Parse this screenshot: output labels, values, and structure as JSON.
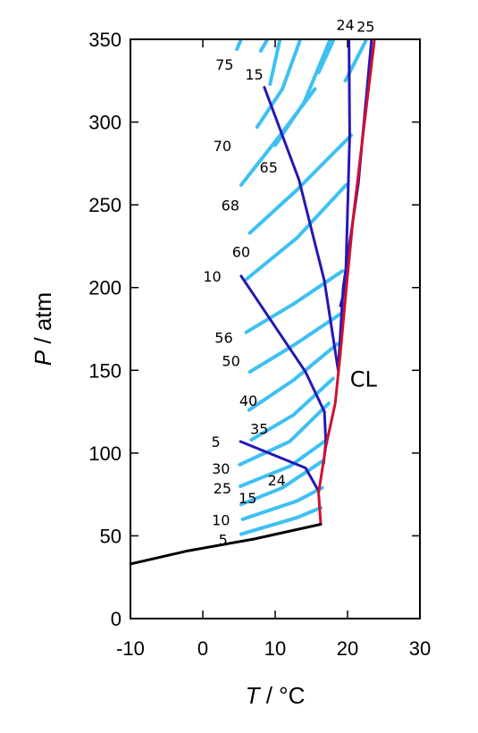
{
  "chart_data": {
    "type": "line",
    "title": "",
    "xlabel": {
      "italic": "T",
      "unit": " / °C"
    },
    "ylabel": {
      "italic": "P",
      "unit": " / atm"
    },
    "xlim": [
      -10,
      30
    ],
    "ylim": [
      0,
      350
    ],
    "xticks": [
      -10,
      0,
      10,
      20,
      30
    ],
    "yticks": [
      0,
      50,
      100,
      150,
      200,
      250,
      300,
      350
    ],
    "grid": false,
    "colors": {
      "isopleth": "#3ec0f2",
      "tie_line": "#2418b4",
      "critical_line": "#d01030",
      "three_phase": "#000000"
    },
    "annotations": [
      {
        "text": "24",
        "x": 19.7,
        "y": 358
      },
      {
        "text": "25",
        "x": 22.5,
        "y": 357
      },
      {
        "text": "75",
        "x": 3.0,
        "y": 334
      },
      {
        "text": "15",
        "x": 7.1,
        "y": 328
      },
      {
        "text": "70",
        "x": 2.7,
        "y": 285
      },
      {
        "text": "65",
        "x": 9.1,
        "y": 272
      },
      {
        "text": "68",
        "x": 3.8,
        "y": 249
      },
      {
        "text": "60",
        "x": 5.3,
        "y": 221
      },
      {
        "text": "10",
        "x": 1.3,
        "y": 206
      },
      {
        "text": "56",
        "x": 2.9,
        "y": 169
      },
      {
        "text": "50",
        "x": 3.9,
        "y": 155
      },
      {
        "text": "40",
        "x": 6.3,
        "y": 131
      },
      {
        "text": "35",
        "x": 7.8,
        "y": 114
      },
      {
        "text": "5",
        "x": 1.8,
        "y": 106
      },
      {
        "text": "30",
        "x": 2.5,
        "y": 90
      },
      {
        "text": "25",
        "x": 2.7,
        "y": 78
      },
      {
        "text": "24",
        "x": 10.2,
        "y": 83
      },
      {
        "text": "15",
        "x": 6.2,
        "y": 72
      },
      {
        "text": "10",
        "x": 2.5,
        "y": 59
      },
      {
        "text": "5",
        "x": 2.8,
        "y": 47
      },
      {
        "text": "CL",
        "x": 22.2,
        "y": 144
      }
    ],
    "isopleths": [
      [
        [
          5.3,
          51
        ],
        [
          13,
          61
        ],
        [
          16.3,
          67
        ]
      ],
      [
        [
          5.5,
          60
        ],
        [
          13,
          71
        ],
        [
          16.5,
          79
        ]
      ],
      [
        [
          5.3,
          69
        ],
        [
          11,
          79
        ],
        [
          16.5,
          95
        ]
      ],
      [
        [
          5.2,
          80
        ],
        [
          12,
          92
        ],
        [
          16.8,
          107
        ]
      ],
      [
        [
          5.1,
          93
        ],
        [
          12,
          107
        ],
        [
          17.4,
          130
        ]
      ],
      [
        [
          6.7,
          108
        ],
        [
          12.5,
          123
        ],
        [
          18.0,
          145
        ]
      ],
      [
        [
          6.4,
          126
        ],
        [
          12.5,
          144
        ],
        [
          18.6,
          166
        ]
      ],
      [
        [
          6.5,
          149
        ],
        [
          12.5,
          165
        ],
        [
          19.0,
          184
        ]
      ],
      [
        [
          6.0,
          173
        ],
        [
          12.5,
          190
        ],
        [
          19.3,
          210
        ]
      ],
      [
        [
          6.0,
          205
        ],
        [
          13,
          230
        ],
        [
          19.8,
          262
        ]
      ],
      [
        [
          6.5,
          233
        ],
        [
          13,
          259
        ],
        [
          20.5,
          292
        ]
      ],
      [
        [
          5.3,
          262
        ],
        [
          10.5,
          291
        ],
        [
          15.5,
          320
        ]
      ],
      [
        [
          10.0,
          286
        ],
        [
          14,
          312
        ],
        [
          17.5,
          349
        ]
      ],
      [
        [
          7.5,
          297
        ],
        [
          11,
          320
        ],
        [
          13.4,
          349
        ]
      ],
      [
        [
          9.3,
          323
        ],
        [
          10.6,
          349
        ]
      ],
      [
        [
          4.7,
          344
        ],
        [
          5.2,
          349
        ]
      ],
      [
        [
          8.0,
          343
        ],
        [
          8.8,
          349
        ]
      ],
      [
        [
          16.0,
          330
        ],
        [
          18.0,
          349
        ]
      ],
      [
        [
          19.7,
          325
        ],
        [
          22.5,
          349
        ]
      ]
    ],
    "tie_lines": [
      [
        [
          5.2,
          107
        ],
        [
          14.2,
          91
        ],
        [
          16.0,
          77
        ]
      ],
      [
        [
          5.3,
          207
        ],
        [
          14.2,
          149
        ],
        [
          16.8,
          125
        ],
        [
          17.0,
          107
        ],
        [
          16.7,
          94
        ]
      ],
      [
        [
          8.5,
          321
        ],
        [
          13.3,
          265
        ],
        [
          16.8,
          204
        ],
        [
          18.7,
          150
        ]
      ],
      [
        [
          20.2,
          349
        ],
        [
          20.3,
          292
        ],
        [
          19.7,
          200
        ],
        [
          19.0,
          189
        ]
      ],
      [
        [
          23.3,
          349
        ],
        [
          21.5,
          263
        ],
        [
          19.4,
          200
        ],
        [
          18.7,
          150
        ]
      ]
    ],
    "critical_line": [
      [
        16.3,
        57
      ],
      [
        16.0,
        76
      ],
      [
        17.0,
        104
      ],
      [
        18.3,
        130
      ],
      [
        19.0,
        160
      ],
      [
        19.9,
        203
      ],
      [
        20.8,
        243
      ],
      [
        22.1,
        291
      ],
      [
        23.7,
        349
      ]
    ],
    "three_phase_line": [
      [
        -10,
        33
      ],
      [
        -2,
        41
      ],
      [
        7,
        48
      ],
      [
        16.3,
        57
      ]
    ]
  }
}
